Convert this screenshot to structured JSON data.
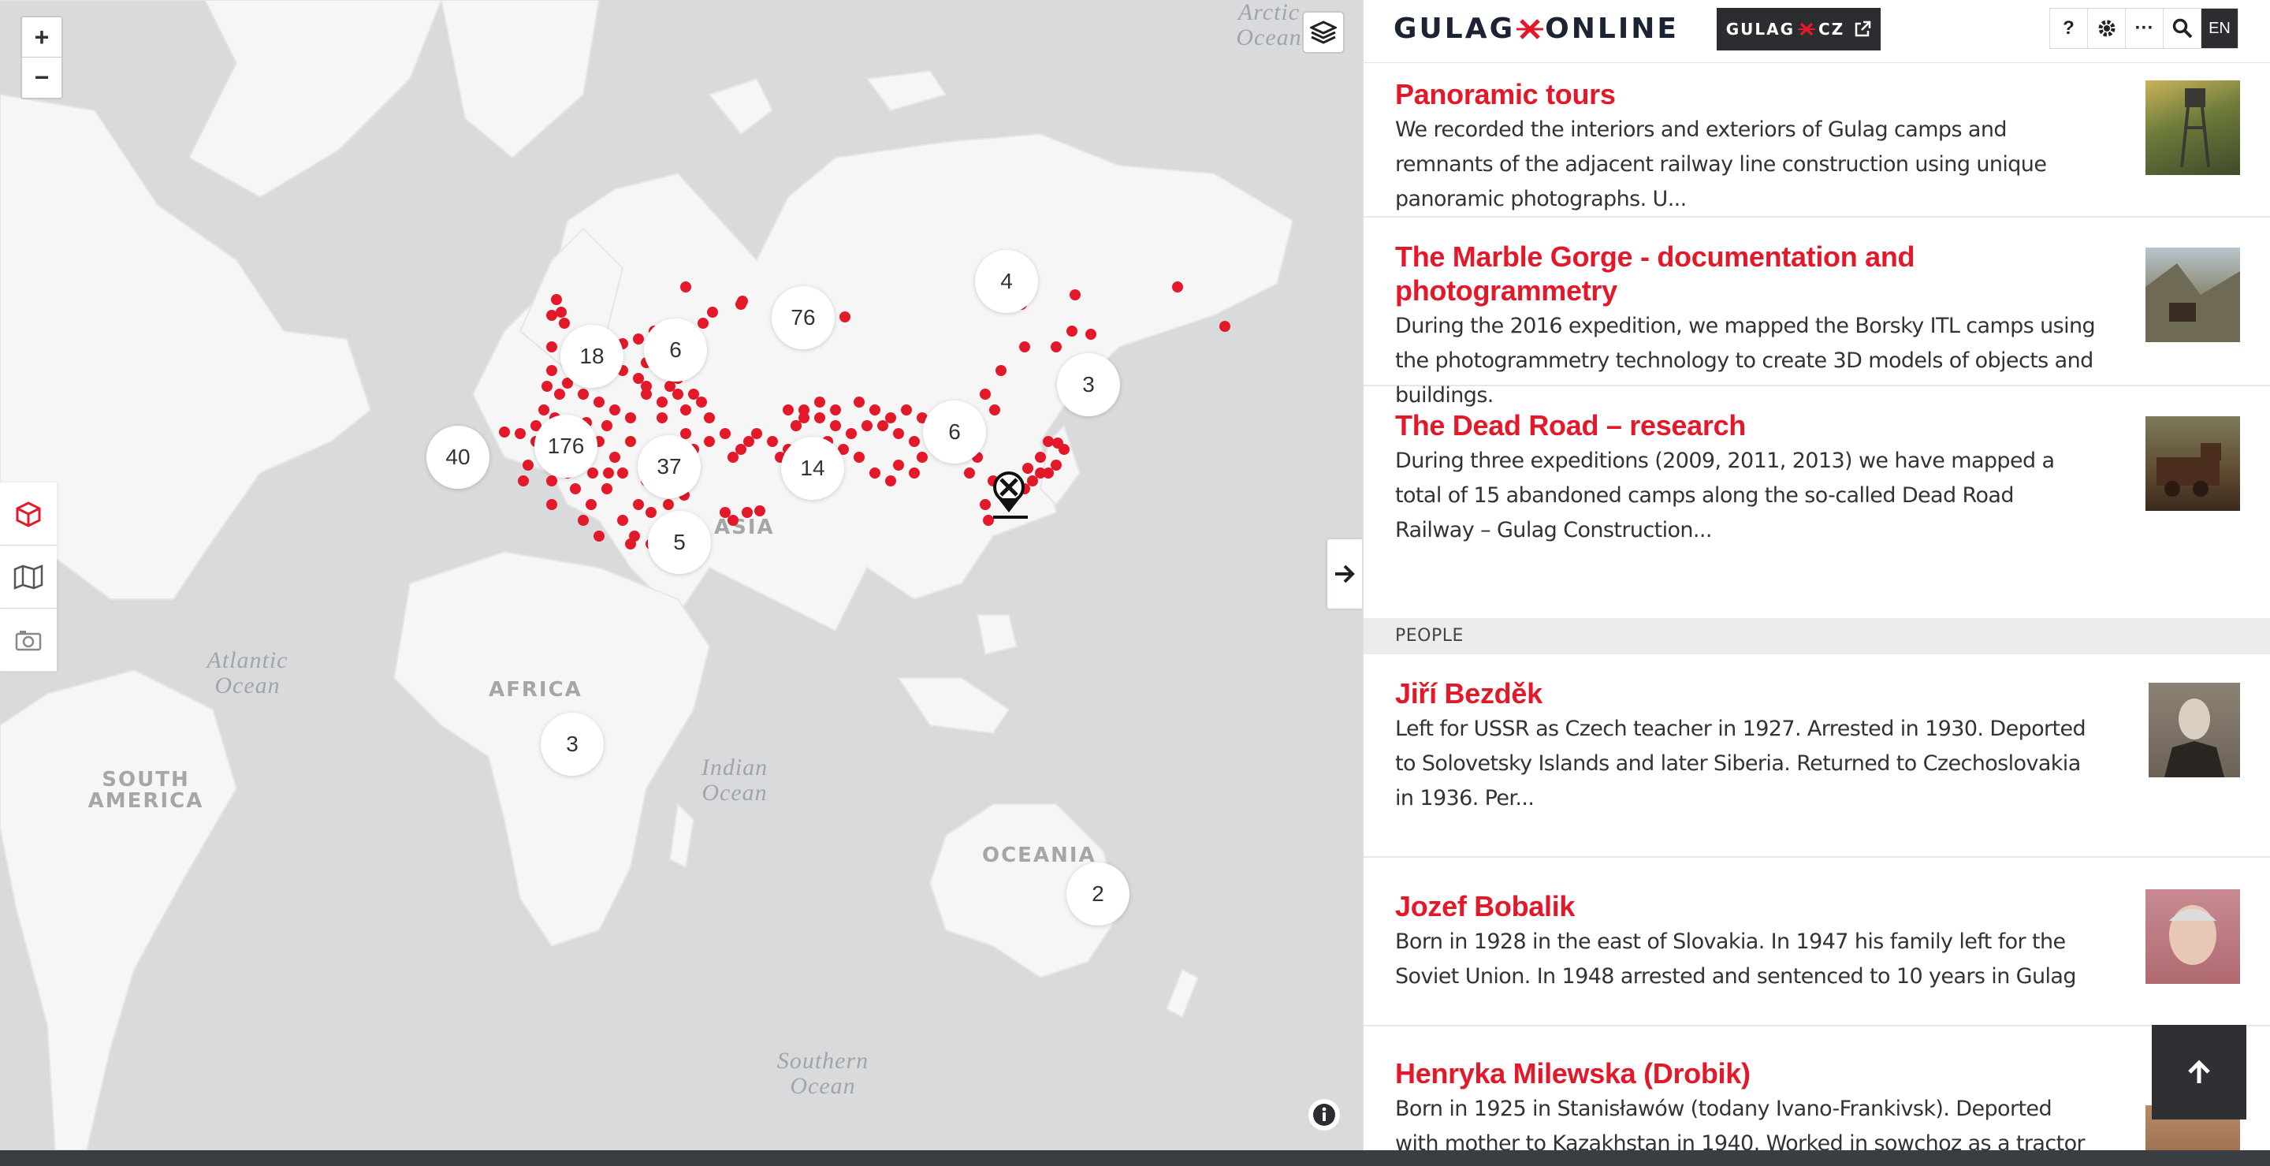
{
  "map": {
    "zoom_in": "+",
    "zoom_out": "−",
    "region_labels": {
      "africa": "AFRICA",
      "south_america": "SOUTH AMERICA",
      "oceania": "OCEANIA",
      "asia": "ASIA"
    },
    "ocean_labels": {
      "atlantic": "Atlantic Ocean",
      "indian": "Indian Ocean",
      "southern": "Southern Ocean",
      "arctic": "Arctic Ocean"
    },
    "clusters": [
      "4",
      "76",
      "18",
      "6",
      "3",
      "6",
      "40",
      "176",
      "37",
      "14",
      "5",
      "3",
      "2"
    ],
    "marker_color": "#e3192a",
    "icons": [
      "layers-icon",
      "cube-icon",
      "map-icon",
      "camera-icon",
      "info-icon",
      "arrow-right-icon",
      "map-pin-icon"
    ]
  },
  "header": {
    "logo_left": "GULAG",
    "logo_right": "ONLINE",
    "cz_left": "GULAG",
    "cz_right": "CZ",
    "help": "?",
    "more": "···",
    "lang": "EN"
  },
  "items": [
    {
      "title": "Panoramic tours",
      "text": "We recorded the interiors and exteriors of Gulag camps and remnants of the adjacent railway line construction using unique panoramic photographs. U..."
    },
    {
      "title": "The Marble Gorge - documentation and photogrammetry",
      "text": "During the 2016 expedition, we mapped the Borsky ITL camps using the photogrammetry technology to create 3D models of objects and buildings."
    },
    {
      "title": "The Dead Road – research",
      "text": "During three expeditions (2009, 2011, 2013) we have mapped a total of 15 abandoned camps along the so-called Dead Road Railway – Gulag Construction..."
    }
  ],
  "people_section": "PEOPLE",
  "people": [
    {
      "title": "Jiří Bezděk",
      "text": "Left for USSR as Czech teacher in 1927. Arrested in 1930. Deported to Solovetsky Islands and later Siberia. Returned to Czechoslovakia in 1936. Per..."
    },
    {
      "title": "Jozef Bobalik",
      "text": "Born in 1928 in the east of Slovakia. In 1947 his family left for the Soviet Union. In 1948 arrested and sentenced to 10 years in Gulag"
    },
    {
      "title": "Henryka Milewska (Drobik)",
      "text": "Born in 1925 in Stanisławów (todany Ivano-Frankivsk). Deported with mother to Kazakhstan in 1940. Worked in sowchoz as a tractor driver. Released..."
    }
  ]
}
